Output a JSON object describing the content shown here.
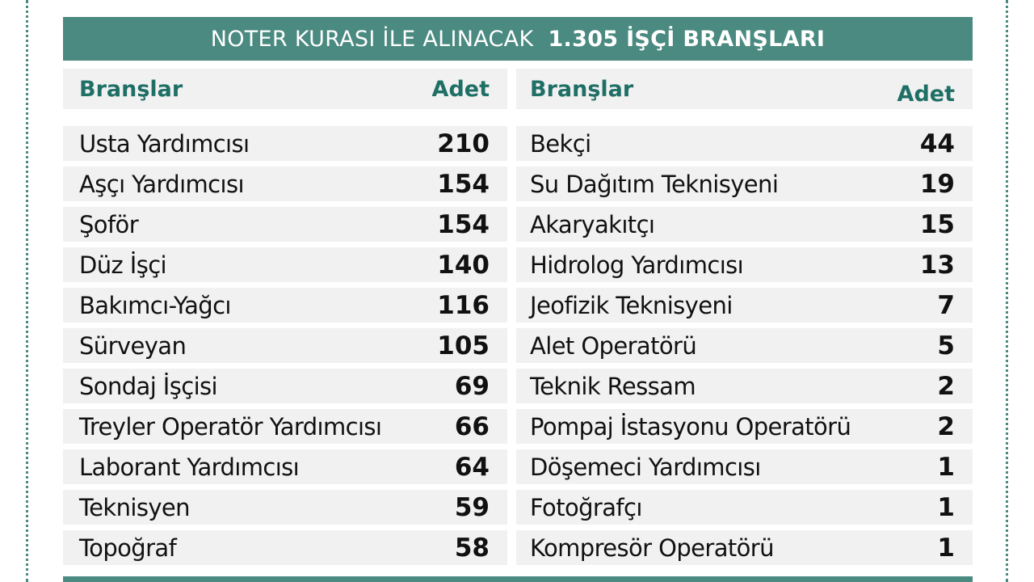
{
  "banner": {
    "title_light": "NOTER KURASI İLE ALINACAK",
    "title_bold": "1.305 İŞÇİ BRANŞLARI"
  },
  "columns": {
    "left": {
      "header_branch": "Branşlar",
      "header_count": "Adet"
    },
    "right": {
      "header_branch": "Branşlar",
      "header_count": "Adet"
    }
  },
  "left_rows": [
    {
      "name": "Usta Yardımcısı",
      "count": "210"
    },
    {
      "name": "Aşçı Yardımcısı",
      "count": "154"
    },
    {
      "name": "Şoför",
      "count": "154"
    },
    {
      "name": "Düz İşçi",
      "count": "140"
    },
    {
      "name": "Bakımcı-Yağcı",
      "count": "116"
    },
    {
      "name": "Sürveyan",
      "count": "105"
    },
    {
      "name": "Sondaj İşçisi",
      "count": "69"
    },
    {
      "name": "Treyler Operatör Yardımcısı",
      "count": "66"
    },
    {
      "name": "Laborant Yardımcısı",
      "count": "64"
    },
    {
      "name": "Teknisyen",
      "count": "59"
    },
    {
      "name": "Topoğraf",
      "count": "58"
    }
  ],
  "right_rows": [
    {
      "name": "Bekçi",
      "count": "44"
    },
    {
      "name": "Su Dağıtım Teknisyeni",
      "count": "19"
    },
    {
      "name": "Akaryakıtçı",
      "count": "15"
    },
    {
      "name": "Hidrolog Yardımcısı",
      "count": "13"
    },
    {
      "name": "Jeofizik Teknisyeni",
      "count": "7"
    },
    {
      "name": "Alet Operatörü",
      "count": "5"
    },
    {
      "name": "Teknik Ressam",
      "count": "2"
    },
    {
      "name": "Pompaj İstasyonu Operatörü",
      "count": "2"
    },
    {
      "name": "Döşemeci Yardımcısı",
      "count": "1"
    },
    {
      "name": "Fotoğrafçı",
      "count": "1"
    },
    {
      "name": "Kompresör Operatörü",
      "count": "1"
    }
  ],
  "colors": {
    "accent": "#4a8a80",
    "header_text": "#1f6f66",
    "row_bg": "#f1f1f1"
  }
}
